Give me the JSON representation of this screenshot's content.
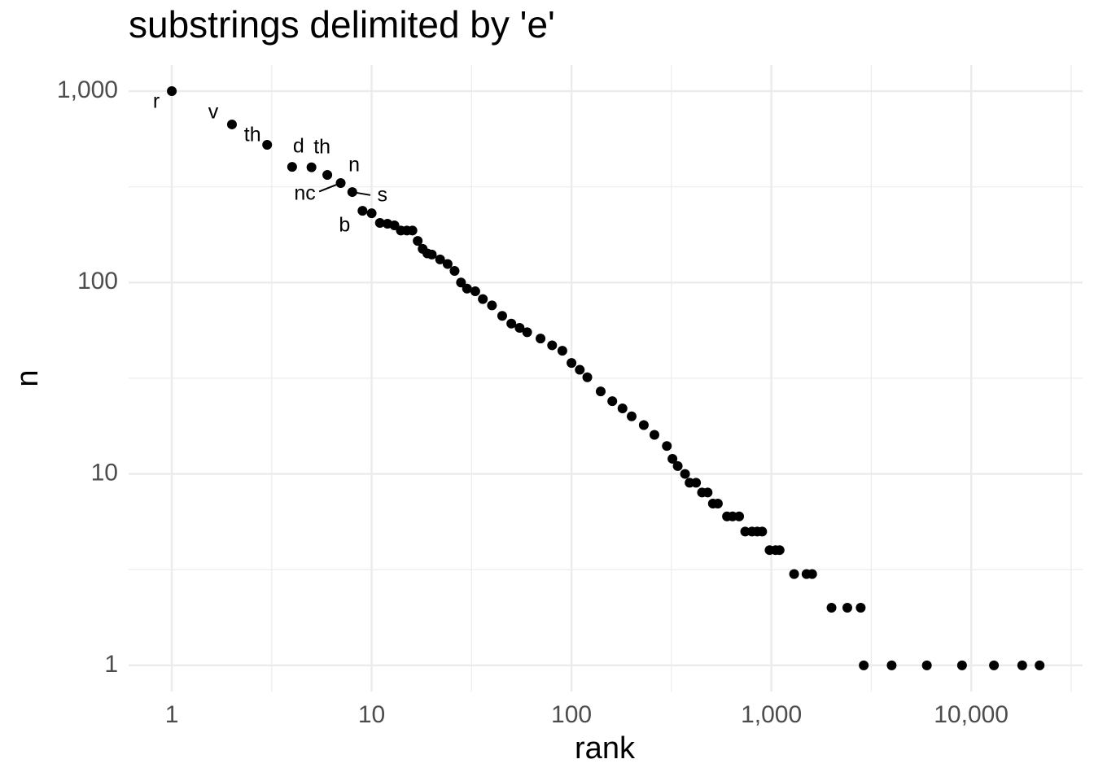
{
  "chart_data": {
    "type": "scatter",
    "title": "substrings delimited by 'e'",
    "x_label": "rank",
    "y_label": "n",
    "log_x": true,
    "log_y": true,
    "grid": true,
    "color": "#000000",
    "xlim": [
      0.608,
      36100
    ],
    "ylim": [
      0.73,
      1368
    ],
    "xticks": [
      1,
      10,
      100,
      {
        "value": 1000,
        "label": "1,000"
      },
      {
        "value": 10000,
        "label": "10,000"
      }
    ],
    "yticks": [
      1,
      10,
      100,
      {
        "value": 1000,
        "label": "1,000"
      }
    ],
    "x_minor_breaks": [
      3.162,
      31.62,
      316.2,
      3162,
      31623
    ],
    "y_minor_breaks": [
      3.162,
      31.62,
      316.2
    ],
    "x": [
      1,
      2,
      3,
      4,
      5,
      6,
      7,
      8,
      9,
      10,
      11,
      12,
      13,
      14,
      15,
      16,
      17,
      18,
      19,
      20,
      22,
      24,
      26,
      28,
      30,
      33,
      36,
      40,
      45,
      50,
      55,
      60,
      70,
      80,
      90,
      100,
      110,
      120,
      140,
      160,
      180,
      200,
      230,
      260,
      300,
      320,
      340,
      370,
      390,
      420,
      450,
      480,
      510,
      540,
      600,
      640,
      690,
      740,
      800,
      850,
      900,
      980,
      1050,
      1100,
      1300,
      1500,
      1600,
      2000,
      2400,
      2800,
      2900,
      4000,
      6000,
      9000,
      13000,
      18000,
      22000
    ],
    "values": [
      1000,
      670,
      524,
      402,
      400,
      365,
      331,
      297,
      237,
      230,
      205,
      203,
      199,
      187,
      187,
      187,
      165,
      150,
      142,
      140,
      132,
      125,
      115,
      100,
      93,
      90,
      82,
      76,
      67,
      61,
      58,
      55,
      51,
      47,
      44,
      38,
      35,
      32,
      27,
      24,
      22,
      20,
      18,
      16,
      14,
      12,
      11,
      10,
      9,
      9,
      8,
      8,
      7,
      7,
      6,
      6,
      6,
      5,
      5,
      5,
      5,
      4,
      4,
      4,
      3,
      3,
      3,
      2,
      2,
      2,
      1,
      1,
      1,
      1,
      1,
      1,
      1
    ],
    "point_labels": [
      "r",
      "v",
      "th",
      "d",
      "th",
      "n",
      "nc",
      "s",
      "b",
      null,
      null,
      null,
      null,
      null,
      null,
      null,
      null,
      null,
      null,
      null,
      null,
      null,
      null,
      null,
      null,
      null,
      null,
      null,
      null,
      null,
      null,
      null,
      null,
      null,
      null,
      null,
      null,
      null,
      null,
      null,
      null,
      null,
      null,
      null,
      null,
      null,
      null,
      null,
      null,
      null,
      null,
      null,
      null,
      null,
      null,
      null,
      null,
      null,
      null,
      null,
      null,
      null,
      null,
      null,
      null,
      null,
      null,
      null,
      null,
      null,
      null,
      null,
      null,
      null,
      null,
      null,
      null
    ]
  }
}
